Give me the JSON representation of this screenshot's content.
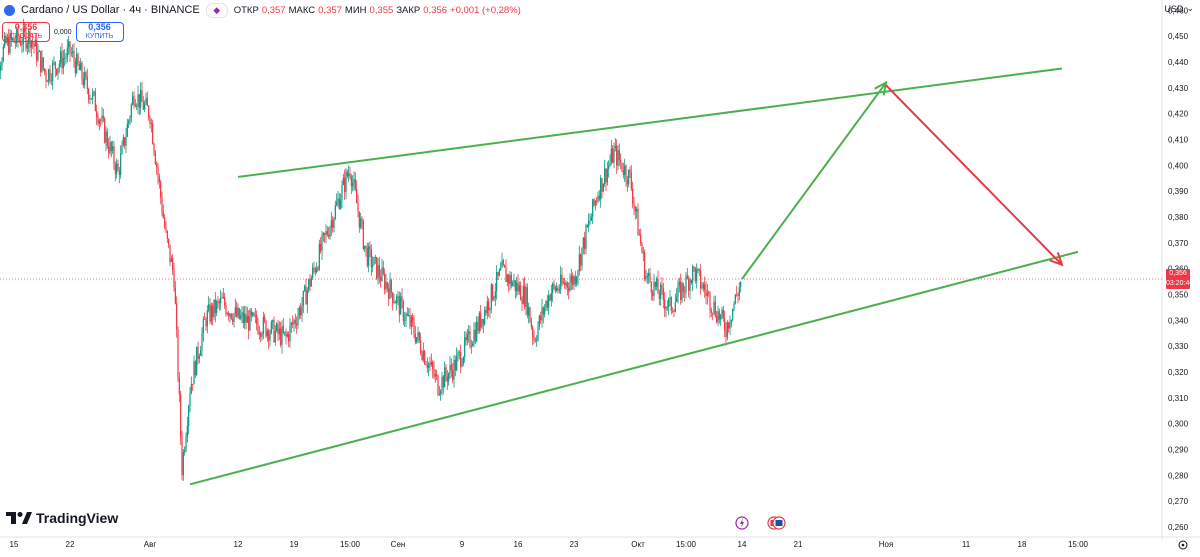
{
  "header": {
    "symbol": "Cardano / US Dollar · 4ч · BINANCE",
    "open_label": "ОТКР",
    "open": "0,357",
    "high_label": "МАКС",
    "high": "0,357",
    "low_label": "МИН",
    "low": "0,355",
    "close_label": "ЗАКР",
    "close": "0,356",
    "change": "+0,001 (+0,28%)"
  },
  "trade": {
    "sell_price": "0,356",
    "sell_label": "ПРОДАТЬ",
    "spread": "0,000",
    "buy_price": "0,356",
    "buy_label": "КУПИТЬ"
  },
  "currency": "USD",
  "brand": "TradingView",
  "price_tag": {
    "price": "0,356",
    "countdown": "03:20:40"
  },
  "colors": {
    "up": "#089981",
    "down": "#f23645",
    "trend": "#4caf50",
    "arrow_down": "#e53945",
    "current": "#f23645"
  },
  "chart_data": {
    "type": "candlestick",
    "y_ticks": [
      0.26,
      0.27,
      0.28,
      0.29,
      0.3,
      0.31,
      0.32,
      0.33,
      0.34,
      0.35,
      0.36,
      0.37,
      0.38,
      0.39,
      0.4,
      0.41,
      0.42,
      0.43,
      0.44,
      0.45,
      0.46
    ],
    "y_tick_labels": [
      "0,260",
      "0,270",
      "0,280",
      "0,290",
      "0,300",
      "0,310",
      "0,320",
      "0,330",
      "0,340",
      "0,350",
      "0,360",
      "0,370",
      "0,380",
      "0,390",
      "0,400",
      "0,410",
      "0,420",
      "0,430",
      "0,440",
      "0,450",
      "0,460"
    ],
    "ylim": [
      0.2565,
      0.464
    ],
    "x_labels": [
      "15",
      "22",
      "Авг",
      "12",
      "19",
      "15:00",
      "Сен",
      "9",
      "16",
      "23",
      "Окт",
      "15:00",
      "14",
      "21",
      "Ноя",
      "11",
      "18",
      "15:00"
    ],
    "x_label_dates": [
      "2024-07-15",
      "2024-07-22",
      "2024-08-01",
      "2024-08-12",
      "2024-08-19",
      "2024-08-26",
      "2024-09-01",
      "2024-09-09",
      "2024-09-16",
      "2024-09-23",
      "2024-10-01",
      "2024-10-07",
      "2024-10-14",
      "2024-10-21",
      "2024-11-01",
      "2024-11-11",
      "2024-11-18",
      "2024-11-25"
    ],
    "price_path": [
      [
        "2024-07-12",
        0.432
      ],
      [
        "2024-07-14",
        0.447
      ],
      [
        "2024-07-17",
        0.45
      ],
      [
        "2024-07-19",
        0.435
      ],
      [
        "2024-07-22",
        0.444
      ],
      [
        "2024-07-25",
        0.425
      ],
      [
        "2024-07-28",
        0.397
      ],
      [
        "2024-07-30",
        0.428
      ],
      [
        "2024-08-01",
        0.42
      ],
      [
        "2024-08-03",
        0.372
      ],
      [
        "2024-08-04",
        0.357
      ],
      [
        "2024-08-05",
        0.283
      ],
      [
        "2024-08-06",
        0.314
      ],
      [
        "2024-08-08",
        0.341
      ],
      [
        "2024-08-10",
        0.347
      ],
      [
        "2024-08-12",
        0.341
      ],
      [
        "2024-08-15",
        0.338
      ],
      [
        "2024-08-18",
        0.333
      ],
      [
        "2024-08-20",
        0.346
      ],
      [
        "2024-08-23",
        0.373
      ],
      [
        "2024-08-26",
        0.399
      ],
      [
        "2024-08-28",
        0.366
      ],
      [
        "2024-08-31",
        0.352
      ],
      [
        "2024-09-03",
        0.336
      ],
      [
        "2024-09-06",
        0.315
      ],
      [
        "2024-09-08",
        0.322
      ],
      [
        "2024-09-11",
        0.338
      ],
      [
        "2024-09-14",
        0.359
      ],
      [
        "2024-09-17",
        0.349
      ],
      [
        "2024-09-18",
        0.333
      ],
      [
        "2024-09-20",
        0.351
      ],
      [
        "2024-09-23",
        0.356
      ],
      [
        "2024-09-26",
        0.39
      ],
      [
        "2024-09-28",
        0.405
      ],
      [
        "2024-09-30",
        0.395
      ],
      [
        "2024-10-02",
        0.357
      ],
      [
        "2024-10-05",
        0.345
      ],
      [
        "2024-10-08",
        0.359
      ],
      [
        "2024-10-10",
        0.348
      ],
      [
        "2024-10-12",
        0.337
      ],
      [
        "2024-10-14",
        0.356
      ]
    ],
    "trendlines": [
      {
        "name": "upper",
        "points": [
          [
            "2024-08-12",
            0.3955
          ],
          [
            "2024-11-23",
            0.4375
          ]
        ]
      },
      {
        "name": "lower",
        "points": [
          [
            "2024-08-06",
            0.2765
          ],
          [
            "2024-11-25",
            0.3665
          ]
        ]
      }
    ],
    "projection_up": [
      [
        "2024-10-14",
        0.356
      ],
      [
        "2024-11-01",
        0.432
      ]
    ],
    "projection_down": [
      [
        "2024-11-01",
        0.431
      ],
      [
        "2024-11-23",
        0.3615
      ]
    ],
    "current_price": 0.356,
    "grid": false
  }
}
